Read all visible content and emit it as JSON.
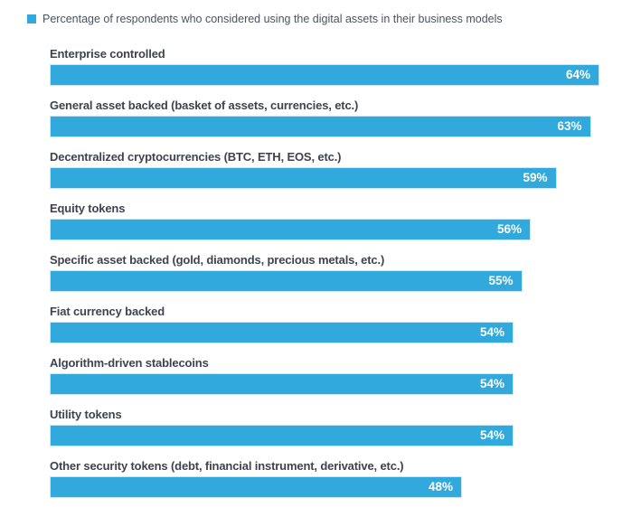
{
  "legend": {
    "label": "Percentage of respondents who considered using the digital assets in their business models",
    "swatch_color": "#31a9dc"
  },
  "chart_data": {
    "type": "bar",
    "orientation": "horizontal",
    "title": "Percentage of respondents who considered using the digital assets in their business models",
    "categories": [
      "Enterprise controlled",
      "General asset backed (basket of assets, currencies, etc.)",
      "Decentralized cryptocurrencies (BTC, ETH, EOS, etc.)",
      "Equity tokens",
      "Specific asset backed (gold, diamonds, precious metals, etc.)",
      "Fiat currency backed",
      "Algorithm-driven stablecoins",
      "Utility tokens",
      "Other security tokens (debt, financial instrument, derivative, etc.)"
    ],
    "values": [
      64,
      63,
      59,
      56,
      55,
      54,
      54,
      54,
      48
    ],
    "value_labels": [
      "64%",
      "63%",
      "59%",
      "56%",
      "55%",
      "54%",
      "54%",
      "54%",
      "48%"
    ],
    "value_suffix": "%",
    "xlim": [
      0,
      67
    ],
    "grid": "off",
    "axes_visible": false,
    "legend_position": "top-left",
    "bar_color": "#31a9dc",
    "bar_border_color": "#c9e7f5",
    "value_label_color": "#ffffff",
    "category_label_color": "#3d4450"
  }
}
